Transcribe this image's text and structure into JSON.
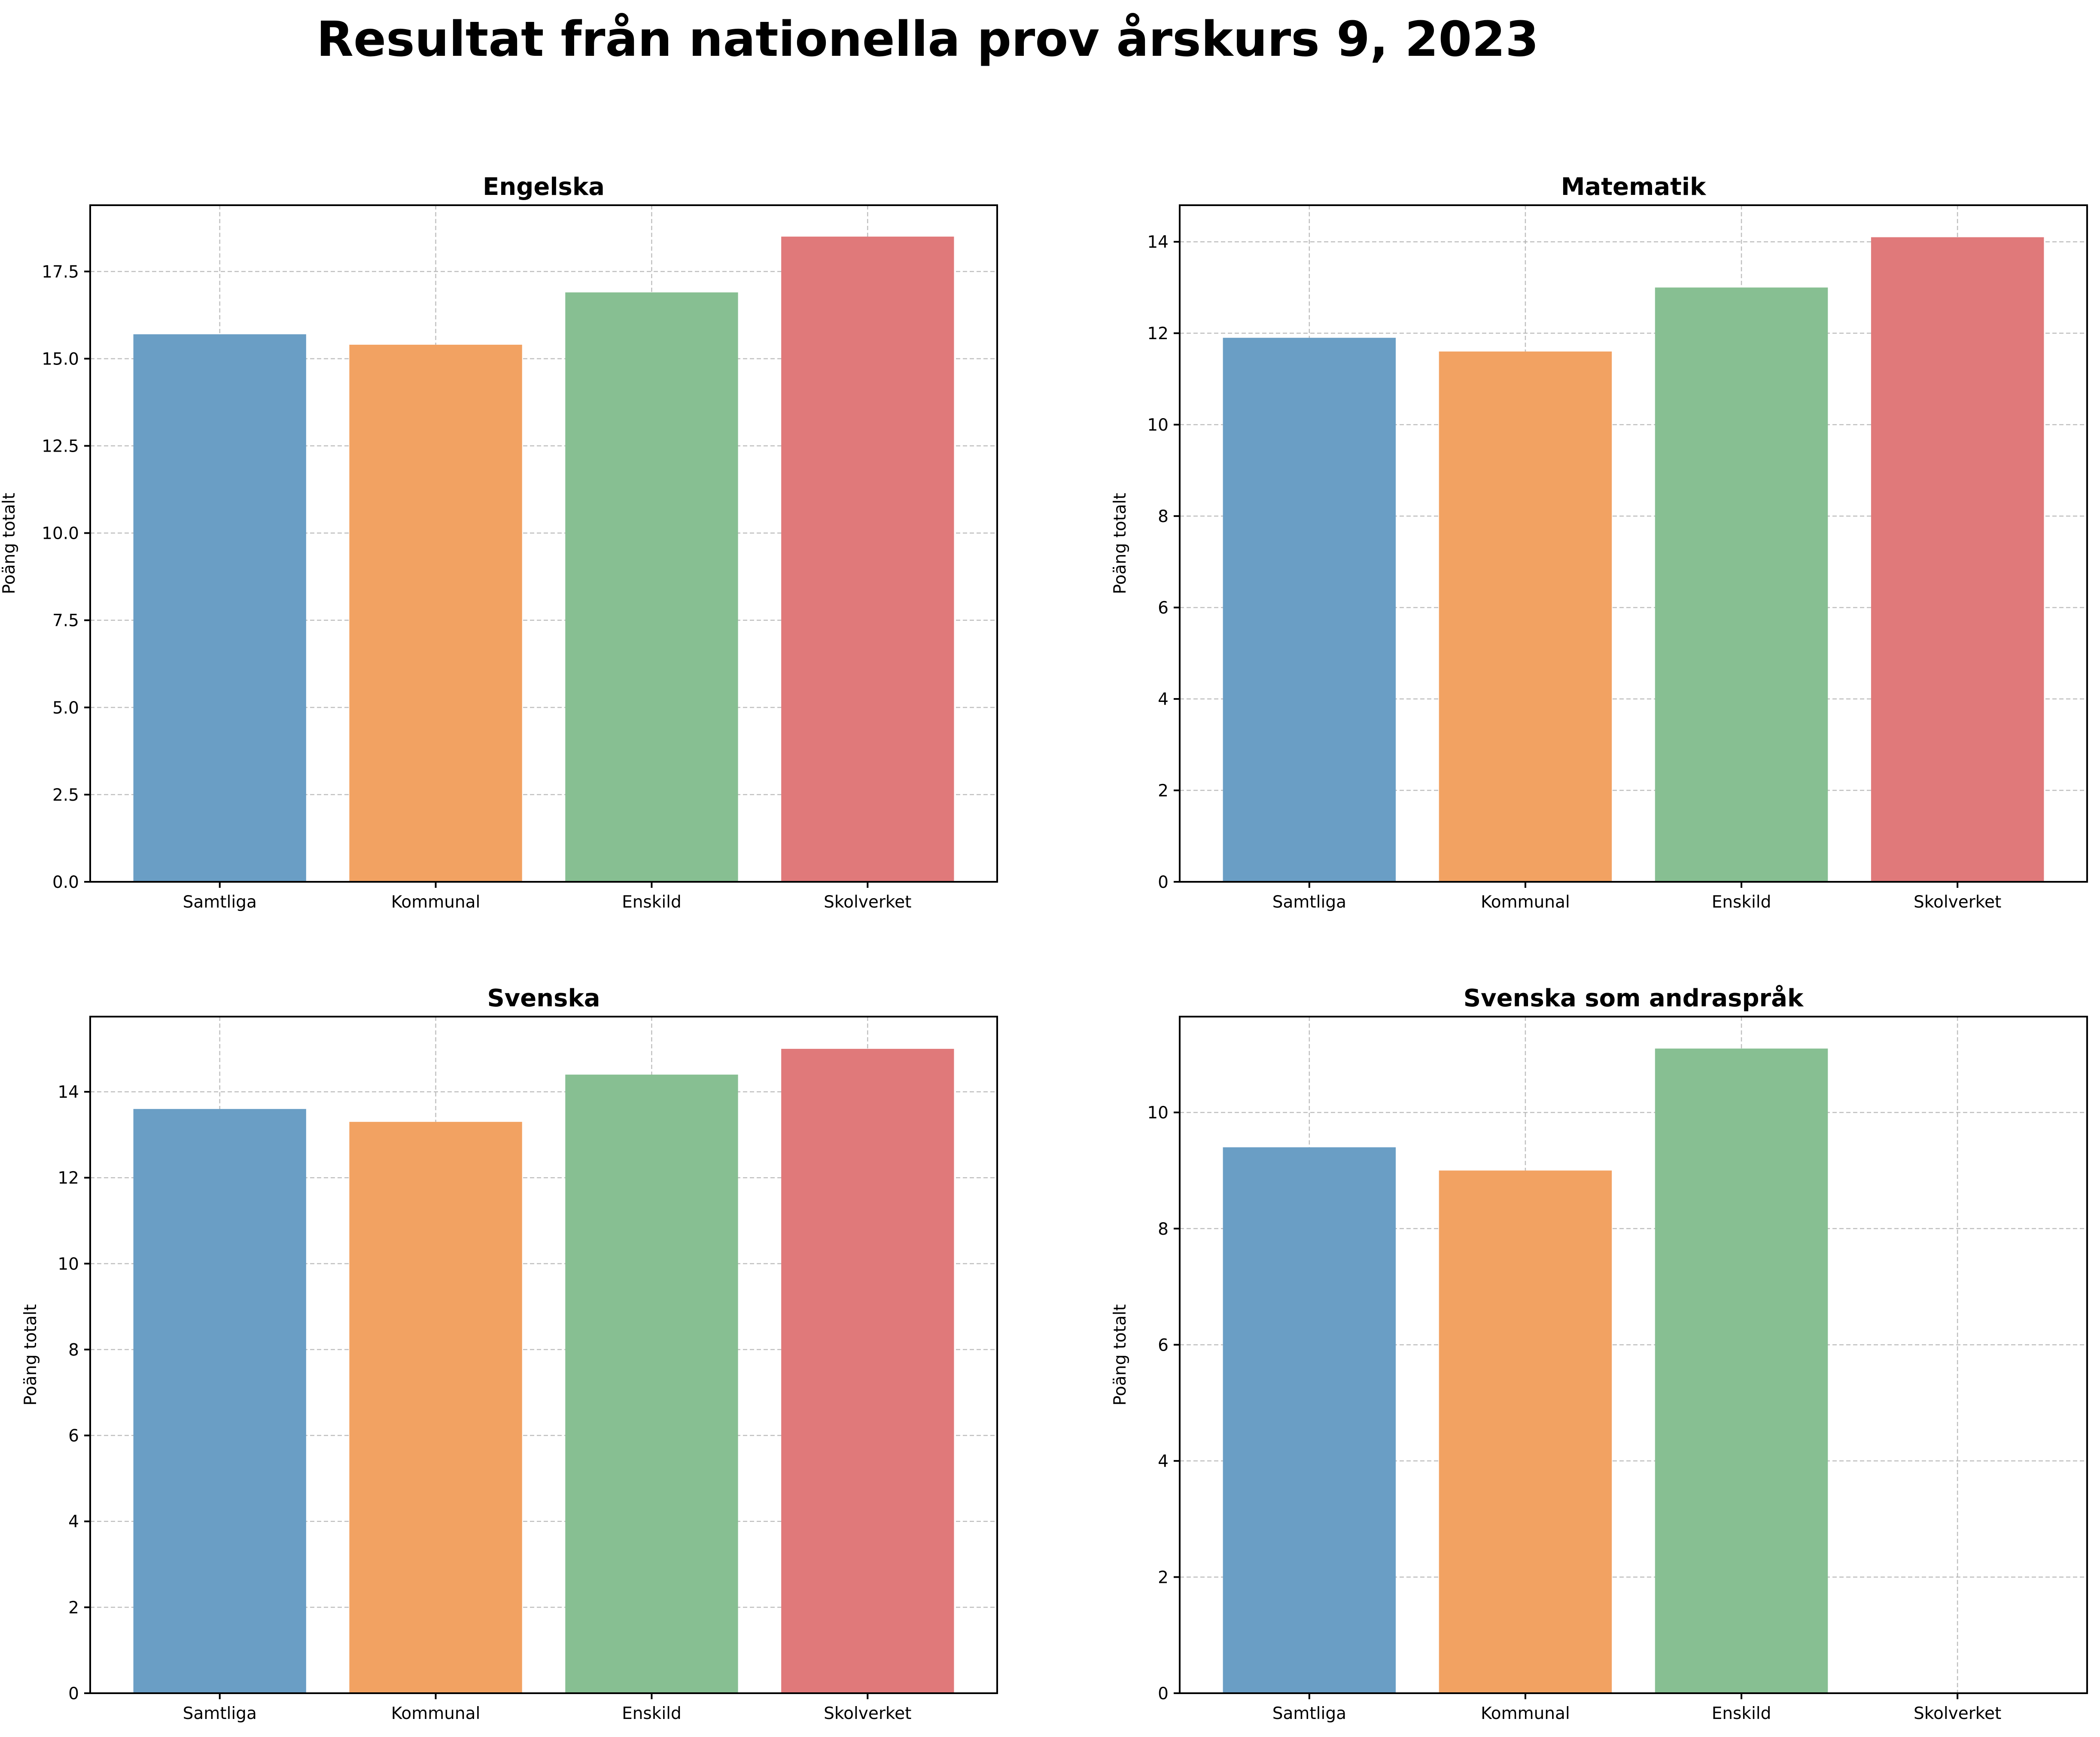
{
  "figure": {
    "title": "Resultat från nationella prov årskurs 9, 2023"
  },
  "colors": {
    "Samtliga": "#6a9ec5",
    "Kommunal": "#f2a262",
    "Enskild": "#87bf92",
    "Skolverket": "#e0797a"
  },
  "chart_data": [
    {
      "type": "bar",
      "title": "Engelska",
      "categories": [
        "Samtliga",
        "Kommunal",
        "Enskild",
        "Skolverket"
      ],
      "values": [
        15.7,
        15.4,
        16.9,
        18.5
      ],
      "xlabel": "",
      "ylabel": "Poäng totalt",
      "ylim": [
        0,
        19.4
      ],
      "yticks": [
        0.0,
        2.5,
        5.0,
        7.5,
        10.0,
        12.5,
        15.0,
        17.5
      ],
      "ytick_labels": [
        "0.0",
        "2.5",
        "5.0",
        "7.5",
        "10.0",
        "12.5",
        "15.0",
        "17.5"
      ],
      "grid": true
    },
    {
      "type": "bar",
      "title": "Matematik",
      "categories": [
        "Samtliga",
        "Kommunal",
        "Enskild",
        "Skolverket"
      ],
      "values": [
        11.9,
        11.6,
        13.0,
        14.1
      ],
      "xlabel": "",
      "ylabel": "Poäng totalt",
      "ylim": [
        0,
        14.8
      ],
      "yticks": [
        0,
        2,
        4,
        6,
        8,
        10,
        12,
        14
      ],
      "ytick_labels": [
        "0",
        "2",
        "4",
        "6",
        "8",
        "10",
        "12",
        "14"
      ],
      "grid": true
    },
    {
      "type": "bar",
      "title": "Svenska",
      "categories": [
        "Samtliga",
        "Kommunal",
        "Enskild",
        "Skolverket"
      ],
      "values": [
        13.6,
        13.3,
        14.4,
        15.0
      ],
      "xlabel": "",
      "ylabel": "Poäng totalt",
      "ylim": [
        0,
        15.75
      ],
      "yticks": [
        0,
        2,
        4,
        6,
        8,
        10,
        12,
        14
      ],
      "ytick_labels": [
        "0",
        "2",
        "4",
        "6",
        "8",
        "10",
        "12",
        "14"
      ],
      "grid": true
    },
    {
      "type": "bar",
      "title": "Svenska som andraspråk",
      "categories": [
        "Samtliga",
        "Kommunal",
        "Enskild",
        "Skolverket"
      ],
      "values": [
        9.4,
        9.0,
        11.1,
        null
      ],
      "xlabel": "",
      "ylabel": "Poäng totalt",
      "ylim": [
        0,
        11.65
      ],
      "yticks": [
        0,
        2,
        4,
        6,
        8,
        10
      ],
      "ytick_labels": [
        "0",
        "2",
        "4",
        "6",
        "8",
        "10"
      ],
      "grid": true
    }
  ]
}
